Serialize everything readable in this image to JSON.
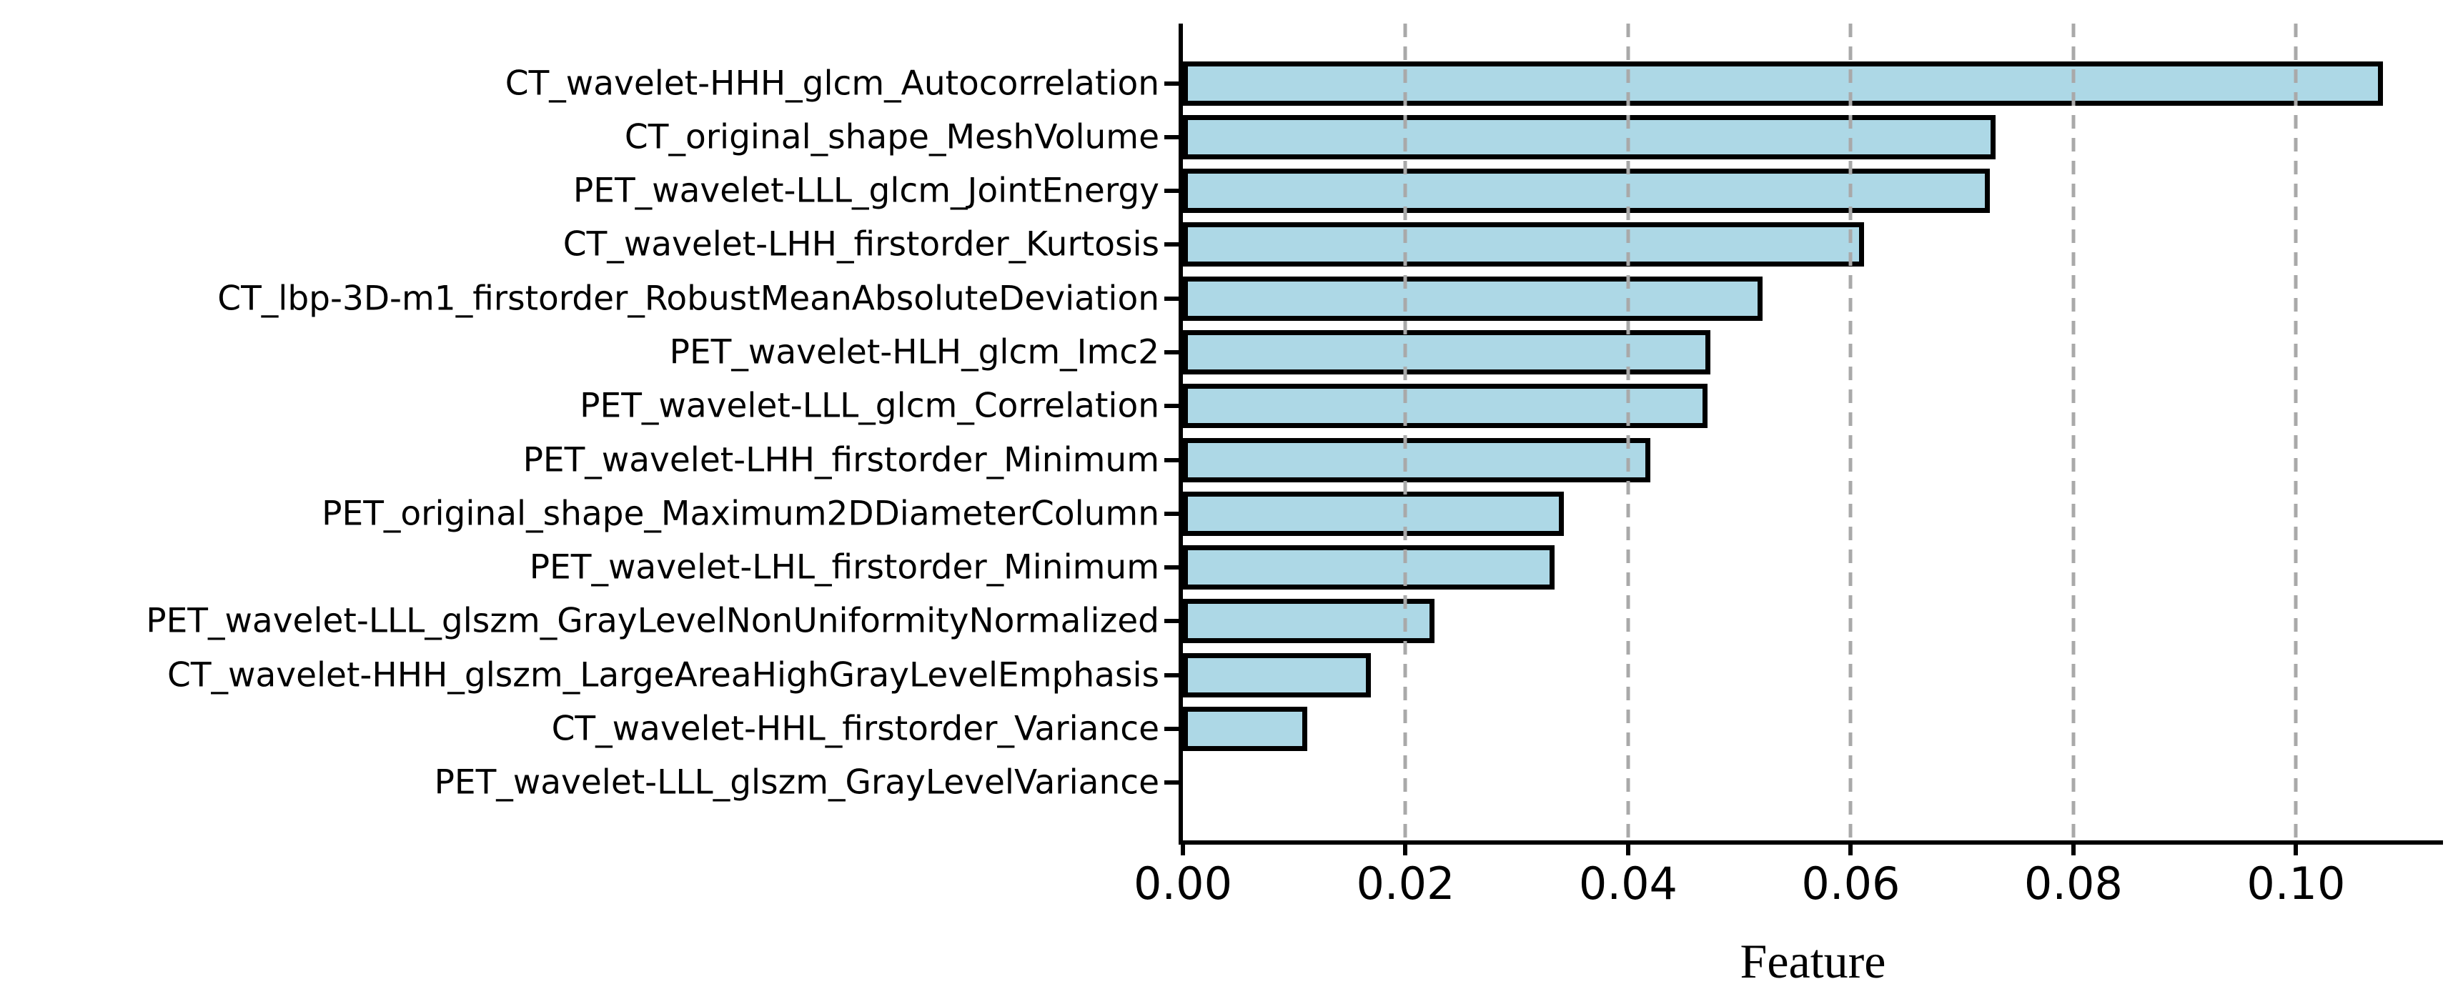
{
  "figure": {
    "background": "#ffffff"
  },
  "chart_data": {
    "type": "bar",
    "orientation": "horizontal",
    "title": "",
    "xlabel": "Feature",
    "ylabel": "",
    "categories": [
      "CT_wavelet-HHH_glcm_Autocorrelation",
      "CT_original_shape_MeshVolume",
      "PET_wavelet-LLL_glcm_JointEnergy",
      "CT_wavelet-LHH_firstorder_Kurtosis",
      "CT_lbp-3D-m1_firstorder_RobustMeanAbsoluteDeviation",
      "PET_wavelet-HLH_glcm_Imc2",
      "PET_wavelet-LLL_glcm_Correlation",
      "PET_wavelet-LHH_firstorder_Minimum",
      "PET_original_shape_Maximum2DDiameterColumn",
      "PET_wavelet-LHL_firstorder_Minimum",
      "PET_wavelet-LLL_glszm_GrayLevelNonUniformityNormalized",
      "CT_wavelet-HHH_glszm_LargeAreaHighGrayLevelEmphasis",
      "CT_wavelet-HHL_firstorder_Variance",
      "PET_wavelet-LLL_glszm_GrayLevelVariance"
    ],
    "values": [
      0.1078,
      0.073,
      0.0725,
      0.0612,
      0.0521,
      0.0474,
      0.0471,
      0.042,
      0.0342,
      0.0334,
      0.0226,
      0.0169,
      0.0112,
      0.0
    ],
    "xlim": [
      0,
      0.1132
    ],
    "xticks": [
      0.0,
      0.02,
      0.04,
      0.06,
      0.08,
      0.1
    ],
    "xtick_labels": [
      "0.00",
      "0.02",
      "0.04",
      "0.06",
      "0.08",
      "0.10"
    ],
    "grid": "vertical-dashed",
    "legend": "none",
    "bar_color": "#ADD8E6",
    "bar_edge_color": "#000000",
    "gridline_color": "#A9A9A9"
  }
}
